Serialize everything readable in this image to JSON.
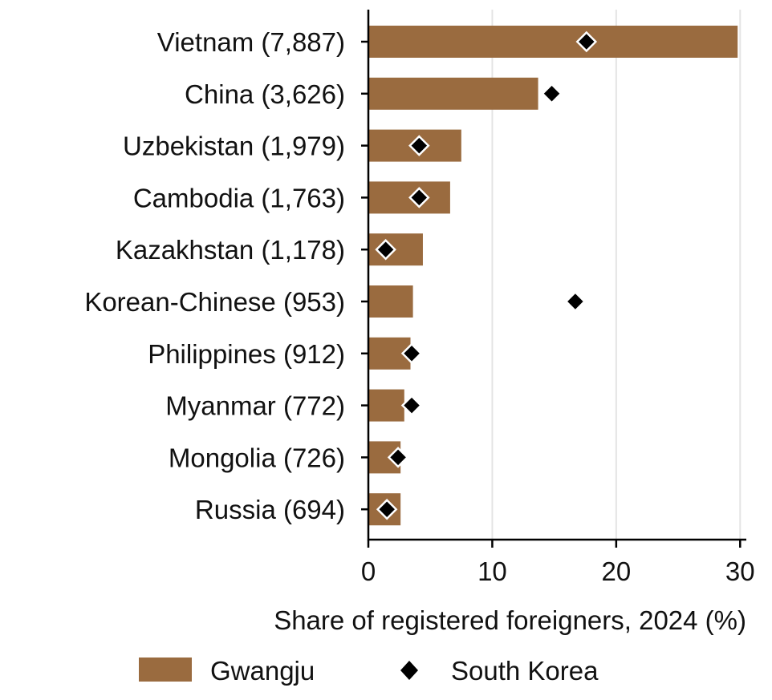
{
  "chart_data": {
    "type": "bar",
    "orientation": "horizontal",
    "categories": [
      "Vietnam (7,887)",
      "China (3,626)",
      "Uzbekistan (1,979)",
      "Cambodia (1,763)",
      "Kazakhstan (1,178)",
      "Korean-Chinese (953)",
      "Philippines (912)",
      "Myanmar (772)",
      "Mongolia (726)",
      "Russia (694)"
    ],
    "series": [
      {
        "name": "Gwangju",
        "mark": "bar",
        "color": "#9a6b3f",
        "values": [
          29.8,
          13.7,
          7.5,
          6.6,
          4.4,
          3.6,
          3.4,
          2.9,
          2.6,
          2.6
        ]
      },
      {
        "name": "South Korea",
        "mark": "diamond",
        "color": "#000000",
        "values": [
          17.6,
          14.8,
          4.1,
          4.1,
          1.4,
          16.7,
          3.5,
          3.5,
          2.4,
          1.5
        ]
      }
    ],
    "xlabel": "Share of registered foreigners, 2024 (%)",
    "ylabel": "",
    "xlim": [
      0,
      30.5
    ],
    "xticks": [
      0,
      10,
      20,
      30
    ],
    "grid": "vertical",
    "legend": "bottom"
  }
}
